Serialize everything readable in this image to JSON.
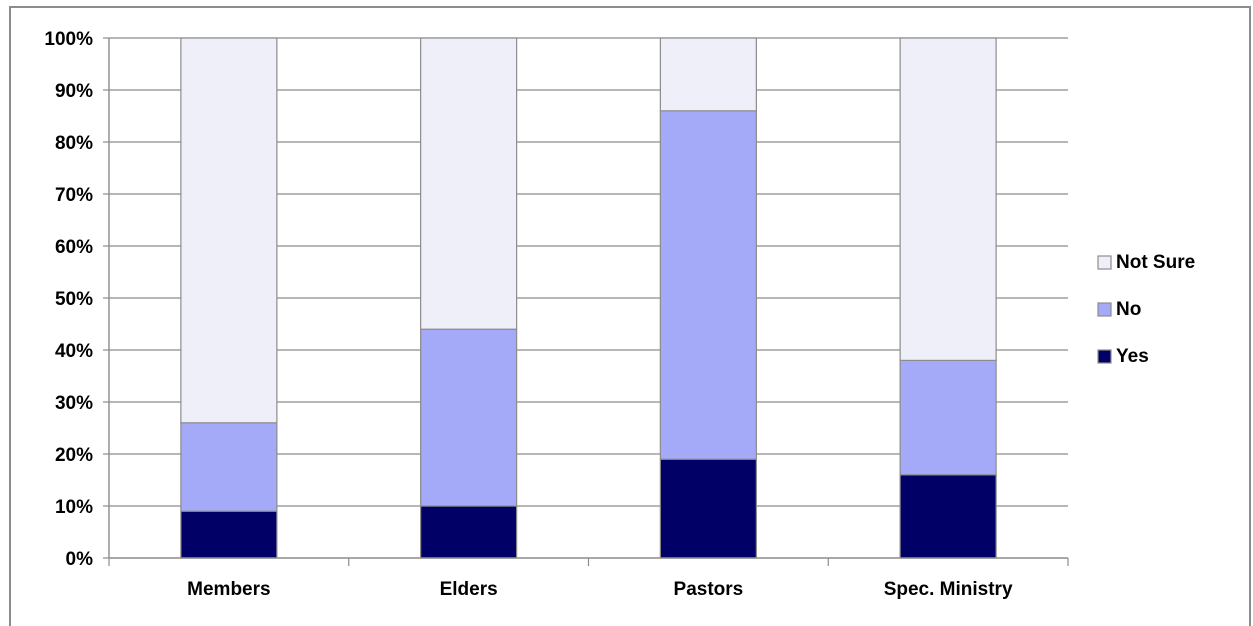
{
  "chart_data": {
    "type": "bar",
    "stacked": true,
    "title": "",
    "xlabel": "",
    "ylabel": "",
    "ylim": [
      0,
      100
    ],
    "y_ticks": [
      "0%",
      "10%",
      "20%",
      "30%",
      "40%",
      "50%",
      "60%",
      "70%",
      "80%",
      "90%",
      "100%"
    ],
    "categories": [
      "Members",
      "Elders",
      "Pastors",
      "Spec. Ministry"
    ],
    "series": [
      {
        "name": "Yes",
        "color": "#000066",
        "values": [
          9,
          10,
          19,
          16
        ]
      },
      {
        "name": "No",
        "color": "#a4a9f8",
        "values": [
          17,
          34,
          67,
          22
        ]
      },
      {
        "name": "Not Sure",
        "color": "#efeffa",
        "values": [
          74,
          56,
          14,
          62
        ]
      }
    ],
    "legend_order": [
      "Not Sure",
      "No",
      "Yes"
    ],
    "legend_position": "right",
    "grid": true
  }
}
